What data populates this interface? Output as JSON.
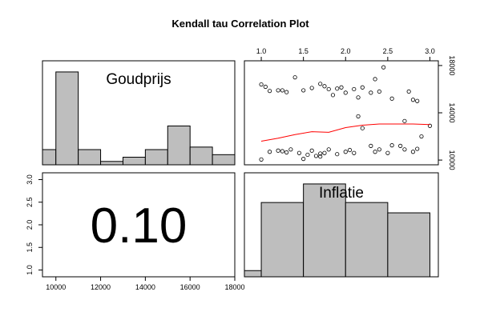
{
  "chart_data": {
    "type": "scatter",
    "title": "Kendall tau Correlation Plot",
    "variables": [
      "Goudprijs",
      "Inflatie"
    ],
    "correlation_text": "0.10",
    "goudprijs_hist": {
      "breaks": [
        9000,
        10000,
        11000,
        12000,
        13000,
        14000,
        15000,
        16000,
        17000,
        18000
      ],
      "density": [
        0.9,
        5.5,
        0.9,
        0.2,
        0.45,
        0.9,
        2.3,
        1.05,
        0.6
      ]
    },
    "inflatie_hist": {
      "breaks": [
        0.8,
        1.0,
        1.5,
        2.0,
        2.5,
        3.0
      ],
      "density": [
        0.6,
        7.2,
        9.0,
        7.2,
        6.2
      ]
    },
    "x_axis_top": {
      "range": [
        0.8,
        3.1
      ],
      "ticks": [
        "1.0",
        "1.5",
        "2.0",
        "2.5",
        "3.0"
      ],
      "tick_values": [
        1.0,
        1.5,
        2.0,
        2.5,
        3.0
      ]
    },
    "y_axis_right": {
      "range": [
        9600,
        18400
      ],
      "ticks": [
        "10000",
        "14000",
        "18000"
      ],
      "tick_values": [
        10000,
        14000,
        18000
      ]
    },
    "x_axis_bottom": {
      "range": [
        9400,
        18000
      ],
      "ticks": [
        "10000",
        "12000",
        "14000",
        "16000",
        "18000"
      ],
      "tick_values": [
        10000,
        12000,
        14000,
        16000,
        18000
      ]
    },
    "y_axis_left": {
      "range": [
        0.85,
        3.15
      ],
      "ticks": [
        "1.0",
        "1.5",
        "2.0",
        "2.5",
        "3.0"
      ],
      "tick_values": [
        1.0,
        1.5,
        2.0,
        2.5,
        3.0
      ]
    },
    "scatter_points": [
      {
        "x": 1.0,
        "y": 16400
      },
      {
        "x": 1.05,
        "y": 16200
      },
      {
        "x": 1.1,
        "y": 15850
      },
      {
        "x": 1.25,
        "y": 15900
      },
      {
        "x": 1.3,
        "y": 15750
      },
      {
        "x": 1.4,
        "y": 17000
      },
      {
        "x": 1.5,
        "y": 15900
      },
      {
        "x": 1.6,
        "y": 16100
      },
      {
        "x": 1.7,
        "y": 16450
      },
      {
        "x": 1.75,
        "y": 16250
      },
      {
        "x": 1.8,
        "y": 16000
      },
      {
        "x": 1.85,
        "y": 15500
      },
      {
        "x": 1.9,
        "y": 16050
      },
      {
        "x": 1.95,
        "y": 16150
      },
      {
        "x": 2.0,
        "y": 15700
      },
      {
        "x": 2.1,
        "y": 16000
      },
      {
        "x": 2.15,
        "y": 15300
      },
      {
        "x": 2.2,
        "y": 16150
      },
      {
        "x": 2.3,
        "y": 15700
      },
      {
        "x": 2.35,
        "y": 16850
      },
      {
        "x": 2.4,
        "y": 15800
      },
      {
        "x": 2.45,
        "y": 17850
      },
      {
        "x": 2.55,
        "y": 15200
      },
      {
        "x": 2.7,
        "y": 13300
      },
      {
        "x": 2.75,
        "y": 15800
      },
      {
        "x": 2.8,
        "y": 15100
      },
      {
        "x": 2.85,
        "y": 15000
      },
      {
        "x": 3.0,
        "y": 12900
      },
      {
        "x": 1.0,
        "y": 10050
      },
      {
        "x": 1.1,
        "y": 10700
      },
      {
        "x": 1.2,
        "y": 10800
      },
      {
        "x": 1.25,
        "y": 10750
      },
      {
        "x": 1.3,
        "y": 10650
      },
      {
        "x": 1.35,
        "y": 10900
      },
      {
        "x": 1.45,
        "y": 10600
      },
      {
        "x": 1.5,
        "y": 10100
      },
      {
        "x": 1.55,
        "y": 10450
      },
      {
        "x": 1.6,
        "y": 10800
      },
      {
        "x": 1.65,
        "y": 10350
      },
      {
        "x": 1.7,
        "y": 10300
      },
      {
        "x": 1.75,
        "y": 10600
      },
      {
        "x": 1.8,
        "y": 10900
      },
      {
        "x": 1.9,
        "y": 10500
      },
      {
        "x": 2.0,
        "y": 10700
      },
      {
        "x": 2.05,
        "y": 10850
      },
      {
        "x": 2.1,
        "y": 10600
      },
      {
        "x": 2.2,
        "y": 12700
      },
      {
        "x": 2.3,
        "y": 11200
      },
      {
        "x": 2.35,
        "y": 10700
      },
      {
        "x": 2.4,
        "y": 10900
      },
      {
        "x": 2.5,
        "y": 10600
      },
      {
        "x": 2.55,
        "y": 11250
      },
      {
        "x": 2.65,
        "y": 11200
      },
      {
        "x": 2.7,
        "y": 10900
      },
      {
        "x": 2.8,
        "y": 10700
      },
      {
        "x": 2.9,
        "y": 12000
      },
      {
        "x": 2.85,
        "y": 10950
      },
      {
        "x": 1.2,
        "y": 15900
      },
      {
        "x": 2.15,
        "y": 13700
      },
      {
        "x": 1.7,
        "y": 10550
      }
    ],
    "smooth_line": [
      {
        "x": 1.0,
        "y": 11600
      },
      {
        "x": 1.2,
        "y": 11850
      },
      {
        "x": 1.4,
        "y": 12150
      },
      {
        "x": 1.6,
        "y": 12400
      },
      {
        "x": 1.8,
        "y": 12350
      },
      {
        "x": 2.0,
        "y": 12750
      },
      {
        "x": 2.2,
        "y": 12950
      },
      {
        "x": 2.4,
        "y": 13050
      },
      {
        "x": 2.6,
        "y": 13050
      },
      {
        "x": 2.8,
        "y": 13050
      },
      {
        "x": 3.0,
        "y": 13000
      }
    ]
  }
}
